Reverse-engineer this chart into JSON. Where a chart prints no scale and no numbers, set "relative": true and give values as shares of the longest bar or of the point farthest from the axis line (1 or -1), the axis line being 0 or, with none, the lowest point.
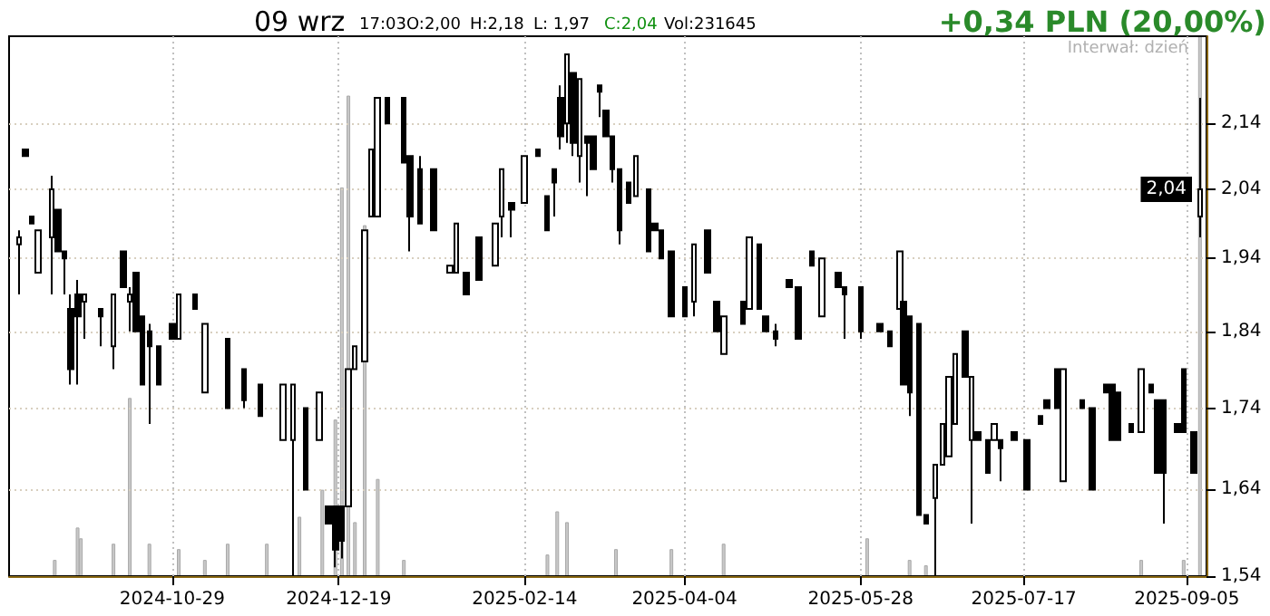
{
  "chart_data": [
    {
      "type": "candlestick",
      "color": "#000000",
      "log": true,
      "grid": true,
      "annotations": [
        "09 wrz",
        "17:03",
        "O:2,00",
        "H:2,18",
        "L: 1,97",
        "C:2,04",
        "Vol:231645",
        "+0,34 PLN (20,00%)",
        "Interwał: dzień",
        {
          "text": "2,04",
          "y": 2.04
        }
      ],
      "xlim": [
        "2024-09-09",
        "2025-09-11"
      ],
      "xticks": [
        "2024-10-29",
        "2024-12-19",
        "2025-02-14",
        "2025-04-04",
        "2025-05-28",
        "2025-07-17",
        "2025-09-05"
      ],
      "ylim": [
        1.54,
        2.28
      ],
      "yticks": [
        {
          "value": 1.54,
          "label": "1,54"
        },
        {
          "value": 1.64,
          "label": "1,64"
        },
        {
          "value": 1.74,
          "label": "1,74"
        },
        {
          "value": 1.84,
          "label": "1,84"
        },
        {
          "value": 1.94,
          "label": "1,94"
        },
        {
          "value": 2.04,
          "label": "2,04"
        },
        {
          "value": 2.14,
          "label": "2,14"
        }
      ],
      "x": [
        "2024-09-12",
        "2024-09-14",
        "2024-09-16",
        "2024-09-18",
        "2024-09-22",
        "2024-09-24",
        "2024-09-26",
        "2024-09-28",
        "2024-09-30",
        "2024-10-02",
        "2024-10-07",
        "2024-10-11",
        "2024-10-14",
        "2024-10-16",
        "2024-10-18",
        "2024-10-20",
        "2024-10-22",
        "2024-10-25",
        "2024-10-29",
        "2024-10-31",
        "2024-11-05",
        "2024-11-08",
        "2024-11-15",
        "2024-11-20",
        "2024-11-25",
        "2024-12-02",
        "2024-12-05",
        "2024-12-09",
        "2024-12-13",
        "2024-12-16",
        "2024-12-18",
        "2024-12-20",
        "2024-12-22",
        "2024-12-24",
        "2024-12-27",
        "2024-12-29",
        "2024-12-31",
        "2025-01-03",
        "2025-01-08",
        "2025-01-10",
        "2025-01-13",
        "2025-01-17",
        "2025-01-22",
        "2025-01-24",
        "2025-01-27",
        "2025-01-31",
        "2025-02-05",
        "2025-02-07",
        "2025-02-10",
        "2025-02-14",
        "2025-02-18",
        "2025-02-21",
        "2025-02-23",
        "2025-02-25",
        "2025-02-27",
        "2025-03-01",
        "2025-03-03",
        "2025-03-05",
        "2025-03-07",
        "2025-03-09",
        "2025-03-11",
        "2025-03-13",
        "2025-03-15",
        "2025-03-18",
        "2025-03-20",
        "2025-03-24",
        "2025-03-26",
        "2025-03-28",
        "2025-03-31",
        "2025-04-04",
        "2025-04-07",
        "2025-04-11",
        "2025-04-14",
        "2025-04-16",
        "2025-04-22",
        "2025-04-24",
        "2025-04-27",
        "2025-04-29",
        "2025-05-02",
        "2025-05-06",
        "2025-05-09",
        "2025-05-13",
        "2025-05-16",
        "2025-05-21",
        "2025-05-23",
        "2025-05-28",
        "2025-06-03",
        "2025-06-06",
        "2025-06-09",
        "2025-06-10",
        "2025-06-12",
        "2025-06-15",
        "2025-06-17",
        "2025-06-20",
        "2025-06-22",
        "2025-06-24",
        "2025-06-26",
        "2025-06-29",
        "2025-07-01",
        "2025-07-03",
        "2025-07-06",
        "2025-07-08",
        "2025-07-10",
        "2025-07-14",
        "2025-07-18",
        "2025-07-22",
        "2025-07-24",
        "2025-07-27",
        "2025-07-29",
        "2025-08-04",
        "2025-08-07",
        "2025-08-11",
        "2025-08-13",
        "2025-08-15",
        "2025-08-19",
        "2025-08-22",
        "2025-08-25",
        "2025-08-27",
        "2025-08-29",
        "2025-09-02",
        "2025-09-04",
        "2025-09-07",
        "2025-09-09"
      ],
      "ohlc": [
        [
          1.96,
          1.98,
          1.89,
          1.97
        ],
        [
          2.1,
          2.1,
          2.09,
          2.09
        ],
        [
          2.0,
          2.0,
          1.99,
          1.99
        ],
        [
          1.92,
          1.98,
          1.92,
          1.98
        ],
        [
          1.97,
          2.06,
          1.89,
          2.04
        ],
        [
          2.01,
          2.01,
          1.95,
          1.95
        ],
        [
          1.95,
          1.95,
          1.89,
          1.94
        ],
        [
          1.87,
          1.89,
          1.77,
          1.79
        ],
        [
          1.89,
          1.91,
          1.77,
          1.86
        ],
        [
          1.88,
          1.89,
          1.83,
          1.89
        ],
        [
          1.87,
          1.87,
          1.82,
          1.86
        ],
        [
          1.82,
          1.89,
          1.79,
          1.89
        ],
        [
          1.95,
          1.95,
          1.9,
          1.9
        ],
        [
          1.88,
          1.9,
          1.84,
          1.89
        ],
        [
          1.92,
          1.92,
          1.84,
          1.84
        ],
        [
          1.86,
          1.86,
          1.77,
          1.77
        ],
        [
          1.84,
          1.85,
          1.72,
          1.82
        ],
        [
          1.82,
          1.82,
          1.77,
          1.77
        ],
        [
          1.85,
          1.85,
          1.83,
          1.83
        ],
        [
          1.83,
          1.89,
          1.83,
          1.89
        ],
        [
          1.89,
          1.89,
          1.87,
          1.87
        ],
        [
          1.76,
          1.85,
          1.76,
          1.85
        ],
        [
          1.83,
          1.83,
          1.74,
          1.74
        ],
        [
          1.79,
          1.79,
          1.74,
          1.75
        ],
        [
          1.77,
          1.77,
          1.73,
          1.73
        ],
        [
          1.7,
          1.77,
          1.7,
          1.77
        ],
        [
          1.7,
          1.77,
          1.54,
          1.77
        ],
        [
          1.74,
          1.74,
          1.64,
          1.64
        ],
        [
          1.7,
          1.76,
          1.7,
          1.76
        ],
        [
          1.62,
          1.62,
          1.6,
          1.6
        ],
        [
          1.62,
          1.62,
          1.55,
          1.57
        ],
        [
          1.62,
          1.62,
          1.56,
          1.58
        ],
        [
          1.62,
          1.79,
          1.62,
          1.79
        ],
        [
          1.79,
          1.82,
          1.79,
          1.82
        ],
        [
          1.8,
          1.98,
          1.8,
          1.98
        ],
        [
          2.0,
          2.1,
          2.0,
          2.1
        ],
        [
          2.0,
          2.18,
          2.0,
          2.18
        ],
        [
          2.18,
          2.18,
          2.14,
          2.14
        ],
        [
          2.18,
          2.18,
          2.08,
          2.08
        ],
        [
          2.09,
          2.09,
          1.95,
          2.0
        ],
        [
          2.07,
          2.09,
          1.99,
          1.99
        ],
        [
          2.07,
          2.07,
          1.98,
          1.98
        ],
        [
          1.92,
          1.93,
          1.92,
          1.93
        ],
        [
          1.92,
          1.99,
          1.92,
          1.99
        ],
        [
          1.92,
          1.92,
          1.89,
          1.89
        ],
        [
          1.97,
          1.97,
          1.91,
          1.91
        ],
        [
          1.93,
          1.99,
          1.93,
          1.99
        ],
        [
          2.0,
          2.07,
          1.97,
          2.07
        ],
        [
          2.02,
          2.02,
          1.97,
          2.01
        ],
        [
          2.02,
          2.09,
          2.02,
          2.09
        ],
        [
          2.1,
          2.1,
          2.09,
          2.09
        ],
        [
          2.03,
          2.03,
          1.98,
          1.98
        ],
        [
          2.07,
          2.07,
          2.0,
          2.05
        ],
        [
          2.18,
          2.2,
          2.1,
          2.12
        ],
        [
          2.14,
          2.25,
          2.11,
          2.25
        ],
        [
          2.22,
          2.22,
          2.09,
          2.11
        ],
        [
          2.09,
          2.21,
          2.05,
          2.21
        ],
        [
          2.12,
          2.12,
          2.03,
          2.11
        ],
        [
          2.12,
          2.12,
          2.07,
          2.07
        ],
        [
          2.2,
          2.2,
          2.15,
          2.19
        ],
        [
          2.16,
          2.16,
          2.12,
          2.12
        ],
        [
          2.12,
          2.12,
          2.05,
          2.07
        ],
        [
          2.07,
          2.07,
          1.96,
          1.98
        ],
        [
          2.05,
          2.05,
          2.02,
          2.02
        ],
        [
          2.03,
          2.09,
          2.03,
          2.09
        ],
        [
          2.04,
          2.04,
          1.95,
          1.95
        ],
        [
          1.99,
          1.99,
          1.98,
          1.98
        ],
        [
          1.98,
          1.98,
          1.94,
          1.94
        ],
        [
          1.95,
          1.95,
          1.86,
          1.86
        ],
        [
          1.9,
          1.9,
          1.86,
          1.86
        ],
        [
          1.88,
          1.96,
          1.86,
          1.96
        ],
        [
          1.98,
          1.98,
          1.92,
          1.92
        ],
        [
          1.88,
          1.88,
          1.84,
          1.84
        ],
        [
          1.81,
          1.86,
          1.81,
          1.86
        ],
        [
          1.88,
          1.88,
          1.85,
          1.85
        ],
        [
          1.87,
          1.97,
          1.87,
          1.97
        ],
        [
          1.96,
          1.96,
          1.87,
          1.87
        ],
        [
          1.86,
          1.86,
          1.84,
          1.84
        ],
        [
          1.84,
          1.85,
          1.82,
          1.83
        ],
        [
          1.91,
          1.91,
          1.9,
          1.9
        ],
        [
          1.9,
          1.9,
          1.83,
          1.83
        ],
        [
          1.95,
          1.95,
          1.93,
          1.93
        ],
        [
          1.86,
          1.94,
          1.86,
          1.94
        ],
        [
          1.92,
          1.92,
          1.9,
          1.9
        ],
        [
          1.9,
          1.9,
          1.83,
          1.89
        ],
        [
          1.9,
          1.9,
          1.83,
          1.84
        ],
        [
          1.85,
          1.85,
          1.84,
          1.84
        ],
        [
          1.84,
          1.84,
          1.82,
          1.82
        ],
        [
          1.87,
          1.95,
          1.87,
          1.95
        ],
        [
          1.88,
          1.88,
          1.77,
          1.77
        ],
        [
          1.86,
          1.86,
          1.73,
          1.76
        ],
        [
          1.85,
          1.85,
          1.61,
          1.61
        ],
        [
          1.61,
          1.61,
          1.6,
          1.6
        ],
        [
          1.63,
          1.67,
          1.54,
          1.67
        ],
        [
          1.67,
          1.72,
          1.67,
          1.72
        ],
        [
          1.68,
          1.78,
          1.68,
          1.78
        ],
        [
          1.72,
          1.81,
          1.72,
          1.81
        ],
        [
          1.84,
          1.84,
          1.78,
          1.78
        ],
        [
          1.7,
          1.78,
          1.6,
          1.78
        ],
        [
          1.71,
          1.71,
          1.7,
          1.7
        ],
        [
          1.7,
          1.7,
          1.66,
          1.66
        ],
        [
          1.7,
          1.72,
          1.7,
          1.72
        ],
        [
          1.7,
          1.7,
          1.65,
          1.69
        ],
        [
          1.71,
          1.71,
          1.7,
          1.7
        ],
        [
          1.7,
          1.7,
          1.64,
          1.64
        ],
        [
          1.73,
          1.73,
          1.72,
          1.72
        ],
        [
          1.75,
          1.75,
          1.74,
          1.74
        ],
        [
          1.79,
          1.79,
          1.74,
          1.74
        ],
        [
          1.65,
          1.79,
          1.65,
          1.79
        ],
        [
          1.75,
          1.75,
          1.74,
          1.74
        ],
        [
          1.74,
          1.74,
          1.64,
          1.64
        ],
        [
          1.77,
          1.77,
          1.76,
          1.76
        ],
        [
          1.77,
          1.77,
          1.7,
          1.7
        ],
        [
          1.76,
          1.76,
          1.7,
          1.7
        ],
        [
          1.72,
          1.72,
          1.71,
          1.71
        ],
        [
          1.71,
          1.79,
          1.71,
          1.79
        ],
        [
          1.77,
          1.77,
          1.76,
          1.76
        ],
        [
          1.75,
          1.75,
          1.66,
          1.66
        ],
        [
          1.75,
          1.75,
          1.6,
          1.66
        ],
        [
          1.72,
          1.72,
          1.71,
          1.71
        ],
        [
          1.79,
          1.79,
          1.71,
          1.71
        ],
        [
          1.71,
          1.71,
          1.66,
          1.66
        ],
        [
          2.0,
          2.18,
          1.97,
          2.04
        ]
      ]
    },
    {
      "type": "bar",
      "relative": true,
      "color": "#c8c8c8",
      "xlim": [
        "2024-09-09",
        "2025-09-11"
      ],
      "x": [
        "2024-09-23",
        "2024-09-30",
        "2024-10-01",
        "2024-10-11",
        "2024-10-16",
        "2024-10-22",
        "2024-10-31",
        "2024-11-08",
        "2024-11-15",
        "2024-11-27",
        "2024-12-07",
        "2024-12-14",
        "2024-12-18",
        "2024-12-20",
        "2024-12-22",
        "2024-12-24",
        "2024-12-27",
        "2024-12-31",
        "2025-01-08",
        "2025-02-21",
        "2025-02-24",
        "2025-02-27",
        "2025-03-14",
        "2025-03-31",
        "2025-04-16",
        "2025-05-30",
        "2025-06-12",
        "2025-06-17",
        "2025-08-22",
        "2025-09-04",
        "2025-09-09"
      ],
      "values": [
        0.03,
        0.09,
        0.07,
        0.06,
        0.33,
        0.06,
        0.05,
        0.03,
        0.06,
        0.06,
        0.11,
        0.16,
        0.29,
        0.72,
        0.89,
        0.1,
        0.65,
        0.18,
        0.03,
        0.04,
        0.12,
        0.1,
        0.05,
        0.05,
        0.06,
        0.07,
        0.03,
        0.02,
        0.03,
        0.03,
        1
      ]
    }
  ]
}
